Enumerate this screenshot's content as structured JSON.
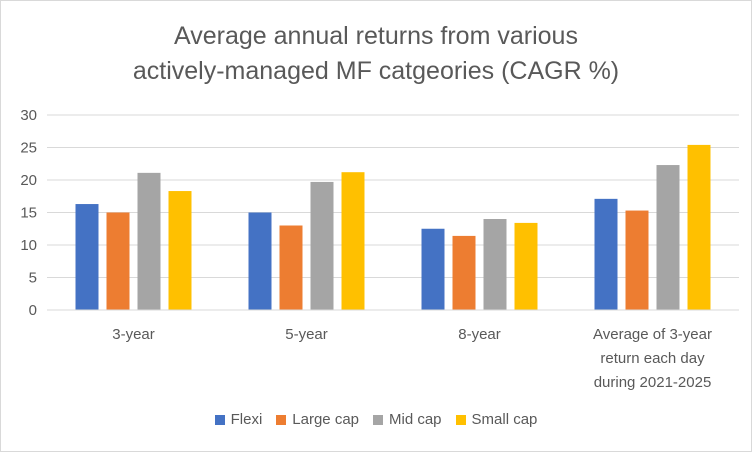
{
  "chart_data": {
    "type": "bar",
    "title": [
      "Average annual returns from various",
      "actively-managed MF catgeories (CAGR %)"
    ],
    "categories": [
      [
        "3-year"
      ],
      [
        "5-year"
      ],
      [
        "8-year"
      ],
      [
        "Average of 3-year",
        "return each day",
        "during 2021-2025"
      ]
    ],
    "series": [
      {
        "name": "Flexi",
        "color": "#4472C4",
        "values": [
          16.3,
          15.0,
          12.5,
          17.1
        ]
      },
      {
        "name": "Large cap",
        "color": "#ED7D31",
        "values": [
          15.0,
          13.0,
          11.4,
          15.3
        ]
      },
      {
        "name": "Mid cap",
        "color": "#A5A5A5",
        "values": [
          21.1,
          19.7,
          14.0,
          22.3
        ]
      },
      {
        "name": "Small cap",
        "color": "#FFC000",
        "values": [
          18.3,
          21.2,
          13.4,
          25.4
        ]
      }
    ],
    "ylim": [
      0,
      30
    ],
    "yticks": [
      "0",
      "5",
      "10",
      "15",
      "20",
      "25",
      "30"
    ],
    "gridlines": true,
    "legend_position": "bottom"
  }
}
